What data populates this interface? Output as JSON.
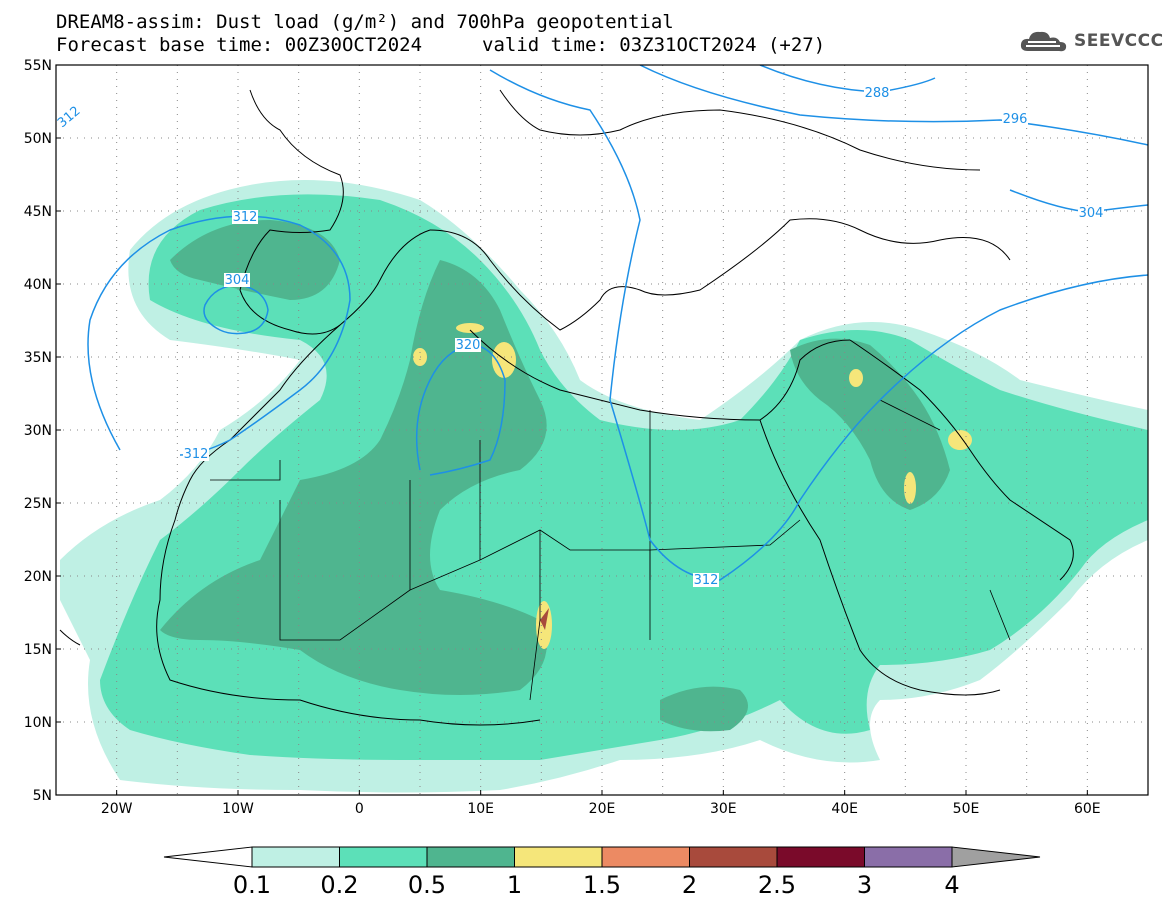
{
  "title": {
    "line1": "DREAM8-assim: Dust load (g/m²) and 700hPa geopotential",
    "line2": "Forecast base time: 00Z30OCT2024",
    "valid": "valid time: 03Z31OCT2024 (+27)"
  },
  "logo": {
    "text": "SEEVCCC",
    "icon": "cloud-logo-icon"
  },
  "map": {
    "lat_labels": [
      "55N",
      "50N",
      "45N",
      "40N",
      "35N",
      "30N",
      "25N",
      "20N",
      "15N",
      "10N",
      "5N"
    ],
    "lon_labels": [
      "20W",
      "10W",
      "0",
      "10E",
      "20E",
      "30E",
      "40E",
      "50E",
      "60E"
    ],
    "lat_range": [
      5,
      55
    ],
    "lon_range": [
      -25,
      65
    ],
    "grid": "dotted",
    "contour_labels": [
      "312",
      "312",
      "304",
      "320",
      "312",
      "312",
      "288",
      "296",
      "304"
    ],
    "contour_color": "#1e90e6"
  },
  "colorbar": {
    "labels": [
      "0.1",
      "0.2",
      "0.5",
      "1",
      "1.5",
      "2",
      "2.5",
      "3",
      "4"
    ],
    "colors": [
      "#bff0e4",
      "#5ce0b8",
      "#4fb58f",
      "#f5e67a",
      "#ec8a63",
      "#a84a3c",
      "#7a0a2a",
      "#8a6ea8"
    ],
    "overflow_color": "#a0a0a0"
  }
}
